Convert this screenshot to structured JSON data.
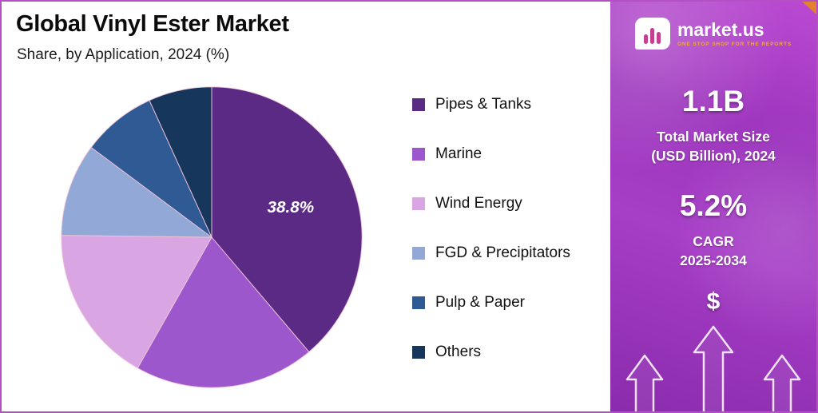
{
  "chart_data": {
    "type": "pie",
    "title": "Global Vinyl Ester Market",
    "subtitle": "Share, by Application, 2024 (%)",
    "unit": "%",
    "start_angle_deg": -90,
    "direction": "clockwise",
    "legend_position": "right",
    "series": [
      {
        "name": "Pipes & Tanks",
        "value": 38.8,
        "color": "#5b2a85",
        "label": "38.8%"
      },
      {
        "name": "Marine",
        "value": 19.4,
        "color": "#9c57cd",
        "label": null
      },
      {
        "name": "Wind Energy",
        "value": 17.0,
        "color": "#d9a6e3",
        "label": null
      },
      {
        "name": "FGD & Precipitators",
        "value": 10.0,
        "color": "#92a8d6",
        "label": null
      },
      {
        "name": "Pulp & Paper",
        "value": 8.0,
        "color": "#2f5a94",
        "label": null
      },
      {
        "name": "Others",
        "value": 6.8,
        "color": "#16365c",
        "label": null
      }
    ],
    "slice_stroke_color": "#eec3d6"
  },
  "sidebar": {
    "brand": {
      "name": "market.us",
      "tagline": "ONE STOP SHOP FOR THE REPORTS"
    },
    "stats": [
      {
        "value": "1.1B",
        "label_line1": "Total Market Size",
        "label_line2": "(USD Billion), 2024"
      },
      {
        "value": "5.2%",
        "label_line1": "CAGR",
        "label_line2": "2025-2034"
      }
    ],
    "dollar_symbol": "$"
  }
}
